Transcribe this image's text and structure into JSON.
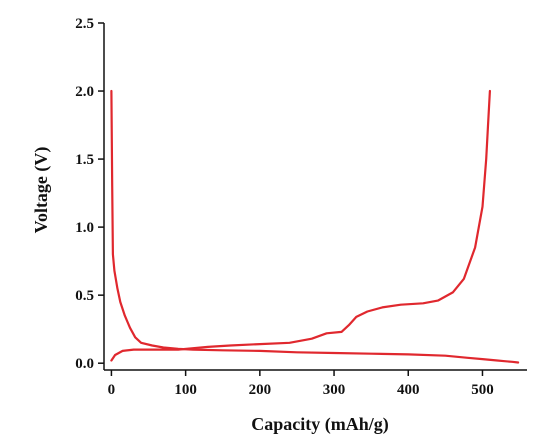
{
  "chart_data": {
    "type": "line",
    "xlabel": "Capacity (mAh/g)",
    "ylabel": "Voltage (V)",
    "xlim": [
      -10,
      560
    ],
    "ylim": [
      -0.05,
      2.5
    ],
    "xticks": [
      0,
      100,
      200,
      300,
      400,
      500
    ],
    "yticks": [
      0.0,
      0.5,
      1.0,
      1.5,
      2.0,
      2.5
    ],
    "ytick_labels": [
      "0.0",
      "0.5",
      "1.0",
      "1.5",
      "2.0",
      "2.5"
    ],
    "grid": false,
    "color": "#e0282e",
    "series": [
      {
        "x": [
          0,
          1,
          2,
          4,
          8,
          12,
          18,
          25,
          32,
          40,
          55,
          70,
          90,
          110,
          150,
          200,
          250,
          300,
          350,
          400,
          450,
          480,
          500,
          520,
          530,
          540,
          548
        ],
        "y": [
          2.0,
          1.3,
          0.8,
          0.68,
          0.55,
          0.45,
          0.35,
          0.26,
          0.19,
          0.15,
          0.13,
          0.115,
          0.105,
          0.1,
          0.095,
          0.09,
          0.08,
          0.075,
          0.07,
          0.065,
          0.055,
          0.04,
          0.03,
          0.02,
          0.015,
          0.01,
          0.005
        ]
      },
      {
        "x": [
          0,
          5,
          15,
          30,
          60,
          90,
          110,
          130,
          160,
          200,
          240,
          270,
          290,
          310,
          320,
          330,
          345,
          365,
          390,
          420,
          440,
          460,
          475,
          490,
          500,
          505,
          508,
          510
        ],
        "y": [
          0.02,
          0.06,
          0.09,
          0.1,
          0.1,
          0.1,
          0.11,
          0.12,
          0.13,
          0.14,
          0.15,
          0.18,
          0.22,
          0.23,
          0.28,
          0.34,
          0.38,
          0.41,
          0.43,
          0.44,
          0.46,
          0.52,
          0.62,
          0.85,
          1.15,
          1.5,
          1.8,
          2.0
        ]
      }
    ]
  }
}
